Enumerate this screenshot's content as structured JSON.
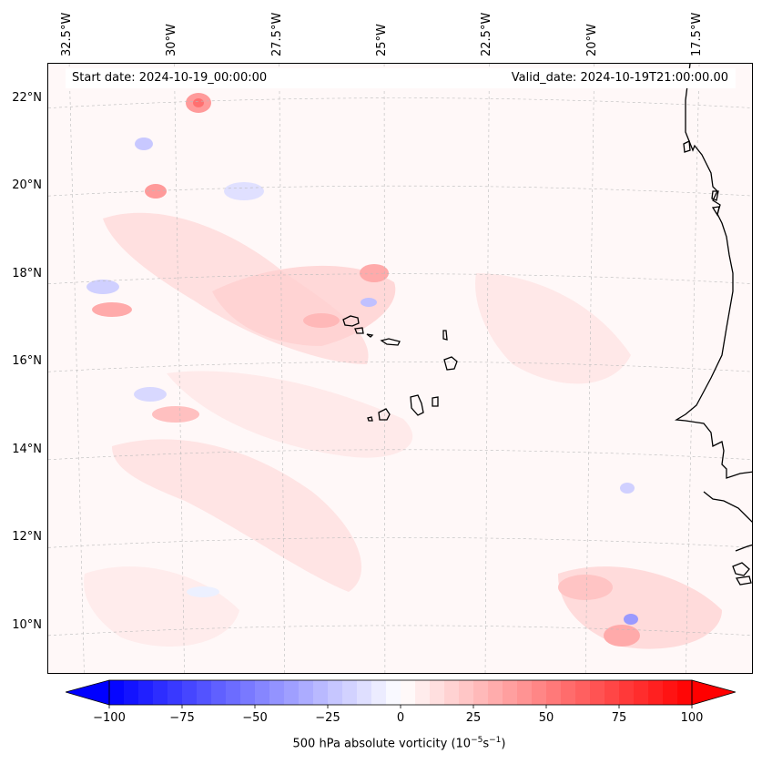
{
  "map": {
    "start_date": "Start date: 2024-10-19_00:00:00",
    "valid_date": "Valid_date: 2024-10-19T21:00:00.00",
    "lon_labels": [
      "32.5°W",
      "30°W",
      "27.5°W",
      "25°W",
      "22.5°W",
      "20°W",
      "17.5°W"
    ],
    "lat_labels": [
      "22°N",
      "20°N",
      "18°N",
      "16°N",
      "14°N",
      "12°N",
      "10°N"
    ],
    "lon_values": [
      -32.5,
      -30,
      -27.5,
      -25,
      -22.5,
      -20,
      -17.5
    ],
    "lat_values": [
      22,
      20,
      18,
      16,
      14,
      12,
      10
    ],
    "extent": {
      "lon_min": -33.0,
      "lon_max": -16.2,
      "lat_min": 8.9,
      "lat_max": 22.8
    }
  },
  "colorbar": {
    "min": -100,
    "max": 100,
    "ticks": [
      "−100",
      "−75",
      "−50",
      "−25",
      "0",
      "25",
      "50",
      "75",
      "100"
    ],
    "tick_values": [
      -100,
      -75,
      -50,
      -25,
      0,
      25,
      50,
      75,
      100
    ],
    "label_main": "500 hPa absolute vorticity (10",
    "label_exp1": "−5",
    "label_mid": "s",
    "label_exp2": "−1",
    "label_end": ")",
    "low_color": "#0000ff",
    "mid_color": "#ffffff",
    "high_color": "#ff0000"
  },
  "colors": {
    "coastline": "#000000",
    "gridline": "#bbbbbb",
    "background_tint": "#fff8f8"
  }
}
